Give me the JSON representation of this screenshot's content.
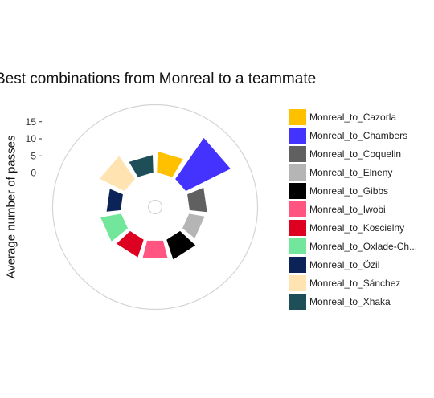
{
  "chart_data": {
    "type": "polar-bar",
    "title": "Best combinations from Monreal to a teammate",
    "ylabel": "Average number of passes",
    "xlabel": "",
    "yticks": [
      0,
      5,
      10,
      15
    ],
    "ylim": [
      -10,
      20
    ],
    "grid": true,
    "legend_position": "right",
    "categories": [
      "Monreal_to_Cazorla",
      "Monreal_to_Chambers",
      "Monreal_to_Coquelin",
      "Monreal_to_Elneny",
      "Monreal_to_Gibbs",
      "Monreal_to_Iwobi",
      "Monreal_to_Koscielny",
      "Monreal_to_Oxlade-Chamberlain",
      "Monreal_to_Özil",
      "Monreal_to_Sánchez",
      "Monreal_to_Xhaka"
    ],
    "legend_labels": [
      "Monreal_to_Cazorla",
      "Monreal_to_Chambers",
      "Monreal_to_Coquelin",
      "Monreal_to_Elneny",
      "Monreal_to_Gibbs",
      "Monreal_to_Iwobi",
      "Monreal_to_Koscielny",
      "Monreal_to_Oxlade-Ch...",
      "Monreal_to_Özil",
      "Monreal_to_Sánchez",
      "Monreal_to_Xhaka"
    ],
    "values": [
      6.5,
      15.0,
      5.5,
      5.0,
      6.5,
      5.5,
      5.8,
      6.5,
      4.5,
      8.5,
      5.5
    ],
    "colors": [
      "#FFC000",
      "#4433FF",
      "#606060",
      "#B5B5B5",
      "#000000",
      "#FF5580",
      "#DD0020",
      "#72E69B",
      "#0B2356",
      "#FFE3B0",
      "#1E4F59"
    ]
  }
}
